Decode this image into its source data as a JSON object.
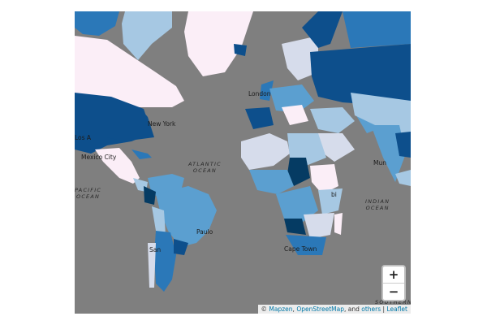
{
  "map": {
    "background_color": "#7f7f7f",
    "choropleth_colors": [
      "#fbeef7",
      "#d6dceb",
      "#a6c8e3",
      "#5b9fd0",
      "#2b78b8",
      "#0d4f8c",
      "#053b63"
    ],
    "cities": [
      {
        "name": "London"
      },
      {
        "name": "New York"
      },
      {
        "name": "Mexico City"
      },
      {
        "name": "Paulo"
      },
      {
        "name": "Cape Town"
      },
      {
        "name": "Mun"
      },
      {
        "name": "San"
      },
      {
        "name": "Los A"
      },
      {
        "name": "bi"
      }
    ],
    "oceans": [
      {
        "line1": "ATLANTIC",
        "line2": "OCEAN"
      },
      {
        "line1": "INDIAN",
        "line2": "OCEAN"
      },
      {
        "line1": "PACIFIC",
        "line2": "OCEAN"
      },
      {
        "line1": "SOUTHERN",
        "line2": ""
      }
    ]
  },
  "controls": {
    "zoom_in": "+",
    "zoom_out": "−"
  },
  "attribution": {
    "prefix": "©",
    "mapzen": "Mapzen",
    "sep1": ",",
    "osm": "OpenStreetMap",
    "sep2": ", and",
    "others": "others",
    "sep3": "|",
    "leaflet": "Leaflet"
  }
}
